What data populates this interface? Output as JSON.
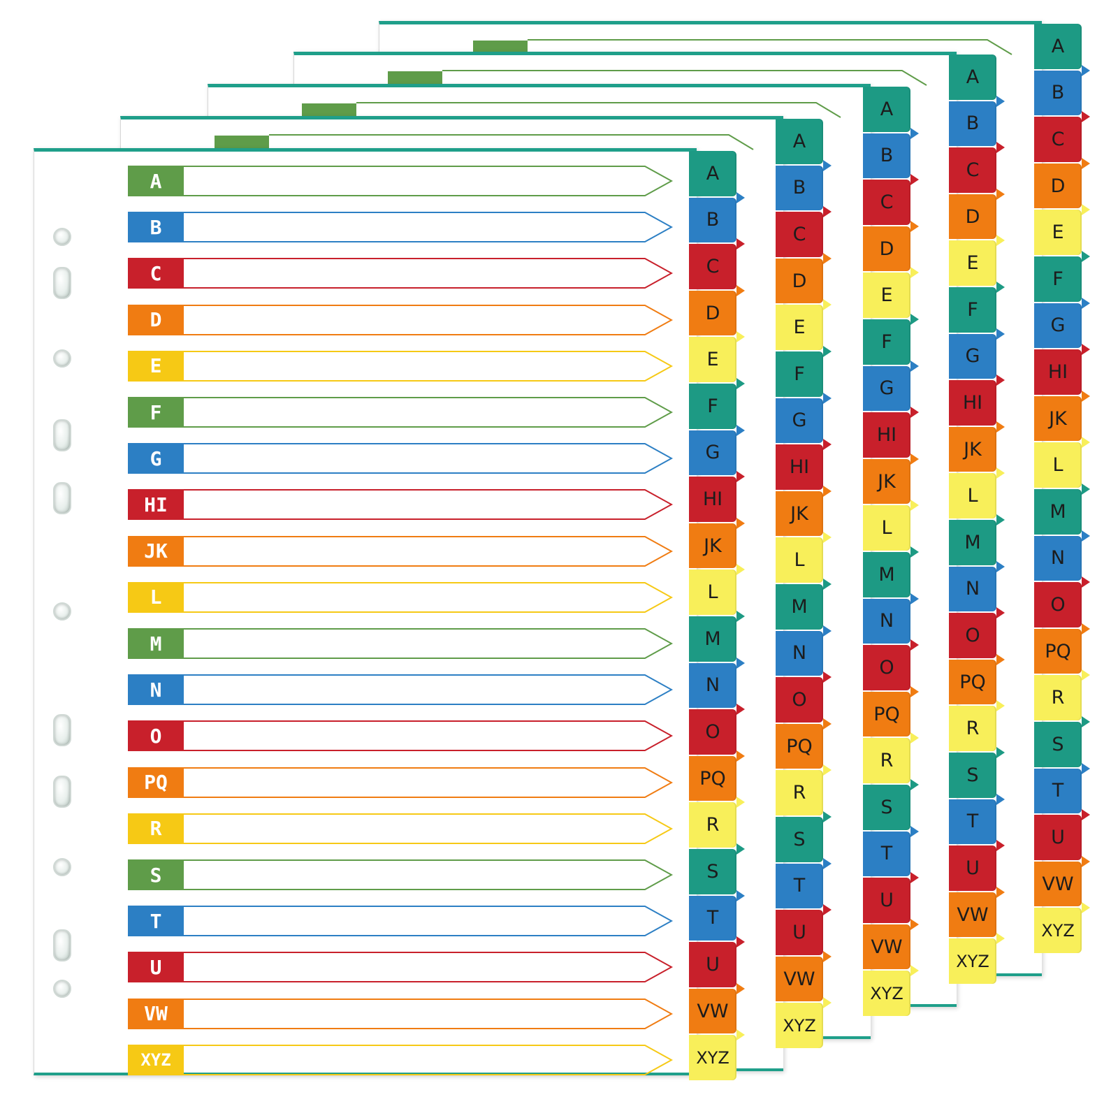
{
  "colors": {
    "green": "#5f9c49",
    "blue": "#2c7fc4",
    "red": "#c8202b",
    "orange": "#f07c12",
    "yellow": "#f6c915",
    "teal": "#1d9a84",
    "light_yellow": "#f8ef5a"
  },
  "front_rows": [
    {
      "label": "A",
      "color": "green"
    },
    {
      "label": "B",
      "color": "blue"
    },
    {
      "label": "C",
      "color": "red"
    },
    {
      "label": "D",
      "color": "orange"
    },
    {
      "label": "E",
      "color": "yellow"
    },
    {
      "label": "F",
      "color": "green"
    },
    {
      "label": "G",
      "color": "blue"
    },
    {
      "label": "HI",
      "color": "red"
    },
    {
      "label": "JK",
      "color": "orange"
    },
    {
      "label": "L",
      "color": "yellow"
    },
    {
      "label": "M",
      "color": "green"
    },
    {
      "label": "N",
      "color": "blue"
    },
    {
      "label": "O",
      "color": "red"
    },
    {
      "label": "PQ",
      "color": "orange"
    },
    {
      "label": "R",
      "color": "yellow"
    },
    {
      "label": "S",
      "color": "green"
    },
    {
      "label": "T",
      "color": "blue"
    },
    {
      "label": "U",
      "color": "red"
    },
    {
      "label": "VW",
      "color": "orange"
    },
    {
      "label": "XYZ",
      "color": "yellow"
    }
  ],
  "side_tabs": [
    {
      "label": "A",
      "color": "teal"
    },
    {
      "label": "B",
      "color": "blue"
    },
    {
      "label": "C",
      "color": "red"
    },
    {
      "label": "D",
      "color": "orange"
    },
    {
      "label": "E",
      "color": "light_yellow"
    },
    {
      "label": "F",
      "color": "teal"
    },
    {
      "label": "G",
      "color": "blue"
    },
    {
      "label": "HI",
      "color": "red"
    },
    {
      "label": "JK",
      "color": "orange"
    },
    {
      "label": "L",
      "color": "light_yellow"
    },
    {
      "label": "M",
      "color": "teal"
    },
    {
      "label": "N",
      "color": "blue"
    },
    {
      "label": "O",
      "color": "red"
    },
    {
      "label": "PQ",
      "color": "orange"
    },
    {
      "label": "R",
      "color": "light_yellow"
    },
    {
      "label": "S",
      "color": "teal"
    },
    {
      "label": "T",
      "color": "blue"
    },
    {
      "label": "U",
      "color": "red"
    },
    {
      "label": "VW",
      "color": "orange"
    },
    {
      "label": "XYZ",
      "color": "light_yellow"
    }
  ],
  "sheet_count": 5,
  "binder_hole_count": 11
}
